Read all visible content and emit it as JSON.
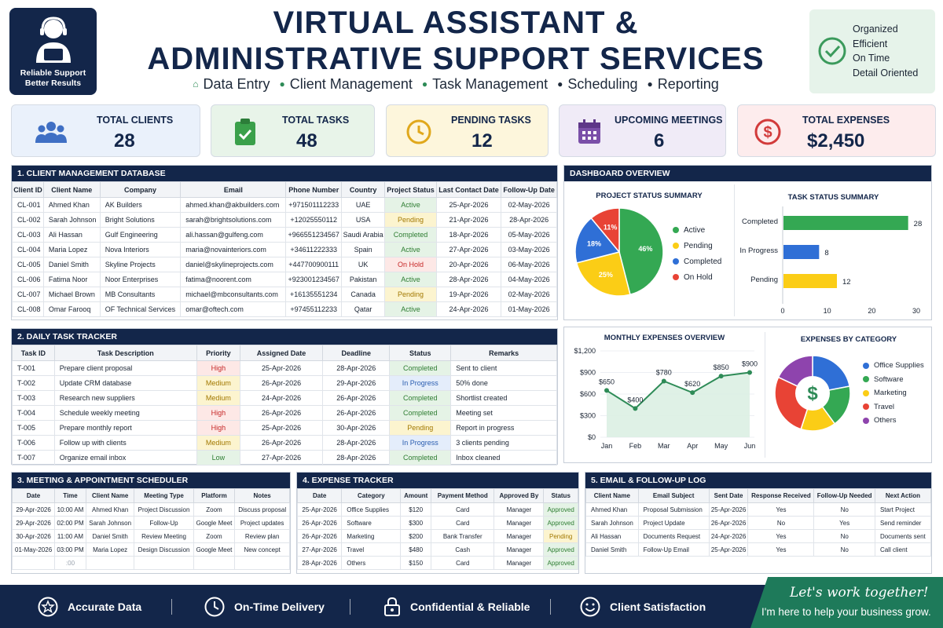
{
  "header": {
    "logo_line1": "Reliable Support",
    "logo_line2": "Better Results",
    "title_line1": "VIRTUAL ASSISTANT &",
    "title_line2": "ADMINISTRATIVE SUPPORT SERVICES",
    "services": [
      "Data Entry",
      "Client Management",
      "Task Management",
      "Scheduling",
      "Reporting"
    ],
    "badge": [
      "Organized",
      "Efficient",
      "On Time",
      "Detail Oriented"
    ]
  },
  "kpis": [
    {
      "label": "TOTAL CLIENTS",
      "value": "28",
      "icon": "users-icon",
      "bg": "#eaf1fb",
      "color": "#3f6fc4"
    },
    {
      "label": "TOTAL TASKS",
      "value": "48",
      "icon": "clipboard-check-icon",
      "bg": "#e8f4e9",
      "color": "#3aa04a"
    },
    {
      "label": "PENDING TASKS",
      "value": "12",
      "icon": "clock-icon",
      "bg": "#fdf6dc",
      "color": "#e0a81c"
    },
    {
      "label": "UPCOMING MEETINGS",
      "value": "6",
      "icon": "calendar-icon",
      "bg": "#f0ebf7",
      "color": "#7a4fa8"
    },
    {
      "label": "TOTAL EXPENSES",
      "value": "$2,450",
      "icon": "dollar-icon",
      "bg": "#fdeced",
      "color": "#d23b3b"
    }
  ],
  "clients": {
    "title": "1. CLIENT MANAGEMENT DATABASE",
    "columns": [
      "Client ID",
      "Client Name",
      "Company",
      "Email",
      "Phone Number",
      "Country",
      "Project Status",
      "Last Contact Date",
      "Follow-Up Date"
    ],
    "rows": [
      [
        "CL-001",
        "Ahmed Khan",
        "AK Builders",
        "ahmed.khan@akbuilders.com",
        "+971501112233",
        "UAE",
        "Active",
        "25-Apr-2026",
        "02-May-2026"
      ],
      [
        "CL-002",
        "Sarah Johnson",
        "Bright Solutions",
        "sarah@brightsolutions.com",
        "+12025550112",
        "USA",
        "Pending",
        "21-Apr-2026",
        "28-Apr-2026"
      ],
      [
        "CL-003",
        "Ali Hassan",
        "Gulf Engineering",
        "ali.hassan@gulfeng.com",
        "+966551234567",
        "Saudi Arabia",
        "Completed",
        "18-Apr-2026",
        "05-May-2026"
      ],
      [
        "CL-004",
        "Maria Lopez",
        "Nova Interiors",
        "maria@novainteriors.com",
        "+34611222333",
        "Spain",
        "Active",
        "27-Apr-2026",
        "03-May-2026"
      ],
      [
        "CL-005",
        "Daniel Smith",
        "Skyline Projects",
        "daniel@skylineprojects.com",
        "+447700900111",
        "UK",
        "On Hold",
        "20-Apr-2026",
        "06-May-2026"
      ],
      [
        "CL-006",
        "Fatima Noor",
        "Noor Enterprises",
        "fatima@noorent.com",
        "+923001234567",
        "Pakistan",
        "Active",
        "28-Apr-2026",
        "04-May-2026"
      ],
      [
        "CL-007",
        "Michael Brown",
        "MB Consultants",
        "michael@mbconsultants.com",
        "+16135551234",
        "Canada",
        "Pending",
        "19-Apr-2026",
        "02-May-2026"
      ],
      [
        "CL-008",
        "Omar Farooq",
        "OF Technical Services",
        "omar@oftech.com",
        "+97455112233",
        "Qatar",
        "Active",
        "24-Apr-2026",
        "01-May-2026"
      ]
    ]
  },
  "tasks": {
    "title": "2. DAILY TASK TRACKER",
    "columns": [
      "Task ID",
      "Task Description",
      "Priority",
      "Assigned Date",
      "Deadline",
      "Status",
      "Remarks"
    ],
    "rows": [
      [
        "T-001",
        "Prepare client proposal",
        "High",
        "25-Apr-2026",
        "28-Apr-2026",
        "Completed",
        "Sent to client"
      ],
      [
        "T-002",
        "Update CRM database",
        "Medium",
        "26-Apr-2026",
        "29-Apr-2026",
        "In Progress",
        "50% done"
      ],
      [
        "T-003",
        "Research new suppliers",
        "Medium",
        "24-Apr-2026",
        "26-Apr-2026",
        "Completed",
        "Shortlist created"
      ],
      [
        "T-004",
        "Schedule weekly meeting",
        "High",
        "26-Apr-2026",
        "26-Apr-2026",
        "Completed",
        "Meeting set"
      ],
      [
        "T-005",
        "Prepare monthly report",
        "High",
        "25-Apr-2026",
        "30-Apr-2026",
        "Pending",
        "Report in progress"
      ],
      [
        "T-006",
        "Follow up with clients",
        "Medium",
        "26-Apr-2026",
        "28-Apr-2026",
        "In Progress",
        "3 clients pending"
      ],
      [
        "T-007",
        "Organize email inbox",
        "Low",
        "27-Apr-2026",
        "28-Apr-2026",
        "Completed",
        "Inbox cleaned"
      ]
    ]
  },
  "meetings": {
    "title": "3. MEETING & APPOINTMENT SCHEDULER",
    "columns": [
      "Date",
      "Time",
      "Client Name",
      "Meeting Type",
      "Platform",
      "Notes"
    ],
    "rows": [
      [
        "29-Apr-2026",
        "10:00 AM",
        "Ahmed Khan",
        "Project Discussion",
        "Zoom",
        "Discuss proposal"
      ],
      [
        "29-Apr-2026",
        "02:00 PM",
        "Sarah Johnson",
        "Follow-Up",
        "Google Meet",
        "Project updates"
      ],
      [
        "30-Apr-2026",
        "11:00 AM",
        "Daniel Smith",
        "Review Meeting",
        "Zoom",
        "Review plan"
      ],
      [
        "01-May-2026",
        "03:00 PM",
        "Maria Lopez",
        "Design Discussion",
        "Google Meet",
        "New concept"
      ]
    ],
    "extra_time": ":00"
  },
  "expenses": {
    "title": "4. EXPENSE TRACKER",
    "columns": [
      "Date",
      "Category",
      "Amount",
      "Payment Method",
      "Approved By",
      "Status"
    ],
    "rows": [
      [
        "25-Apr-2026",
        "Office Supplies",
        "$120",
        "Card",
        "Manager",
        "Approved"
      ],
      [
        "26-Apr-2026",
        "Software",
        "$300",
        "Card",
        "Manager",
        "Approved"
      ],
      [
        "26-Apr-2026",
        "Marketing",
        "$200",
        "Bank Transfer",
        "Manager",
        "Pending"
      ],
      [
        "27-Apr-2026",
        "Travel",
        "$480",
        "Cash",
        "Manager",
        "Approved"
      ],
      [
        "28-Apr-2026",
        "Others",
        "$150",
        "Card",
        "Manager",
        "Approved"
      ]
    ]
  },
  "emails": {
    "title": "5. EMAIL & FOLLOW-UP LOG",
    "columns": [
      "Client Name",
      "Email Subject",
      "Sent Date",
      "Response Received",
      "Follow-Up Needed",
      "Next Action"
    ],
    "rows": [
      [
        "Ahmed Khan",
        "Proposal Submission",
        "25-Apr-2026",
        "Yes",
        "No",
        "Start Project"
      ],
      [
        "Sarah Johnson",
        "Project Update",
        "26-Apr-2026",
        "No",
        "Yes",
        "Send reminder"
      ],
      [
        "Ali Hassan",
        "Documents Request",
        "24-Apr-2026",
        "Yes",
        "No",
        "Documents sent"
      ],
      [
        "Daniel Smith",
        "Follow-Up Email",
        "25-Apr-2026",
        "Yes",
        "No",
        "Call client"
      ]
    ]
  },
  "dashboard": {
    "title": "DASHBOARD OVERVIEW"
  },
  "chart_data": [
    {
      "type": "pie",
      "title": "PROJECT STATUS SUMMARY",
      "categories": [
        "Active",
        "Pending",
        "Completed",
        "On Hold"
      ],
      "values": [
        46,
        25,
        18,
        11
      ],
      "labels": [
        "46%",
        "25%",
        "18%",
        "11%"
      ],
      "colors": [
        "#34a853",
        "#fbcd16",
        "#2f6fd6",
        "#e84335"
      ],
      "legend": "right"
    },
    {
      "type": "bar",
      "title": "TASK STATUS SUMMARY",
      "orientation": "horizontal",
      "categories": [
        "Completed",
        "In Progress",
        "Pending"
      ],
      "values": [
        28,
        8,
        12
      ],
      "colors": [
        "#34a853",
        "#2f6fd6",
        "#fbcd16"
      ],
      "xlim": [
        0,
        30
      ],
      "xticks": [
        0,
        10,
        20,
        30
      ]
    },
    {
      "type": "line",
      "title": "MONTHLY EXPENSES OVERVIEW",
      "categories": [
        "Jan",
        "Feb",
        "Mar",
        "Apr",
        "May",
        "Jun"
      ],
      "values": [
        650,
        400,
        780,
        620,
        850,
        900
      ],
      "labels": [
        "$650",
        "$400",
        "$780",
        "$620",
        "$850",
        "$900"
      ],
      "ylim": [
        0,
        1200
      ],
      "yticks": [
        "$0",
        "$300",
        "$600",
        "$900",
        "$1,200"
      ],
      "color": "#2e8b57"
    },
    {
      "type": "pie",
      "title": "EXPENSES BY CATEGORY",
      "categories": [
        "Office Supplies",
        "Software",
        "Marketing",
        "Travel",
        "Others"
      ],
      "values": [
        22,
        18,
        15,
        27,
        18
      ],
      "colors": [
        "#2f6fd6",
        "#34a853",
        "#fbcd16",
        "#e84335",
        "#8e44ad"
      ],
      "legend": "right",
      "donut": true,
      "center_icon": "dollar-icon"
    }
  ],
  "footer": {
    "items": [
      {
        "label": "Accurate Data",
        "icon": "star-icon"
      },
      {
        "label": "On-Time Delivery",
        "icon": "clock-icon"
      },
      {
        "label": "Confidential & Reliable",
        "icon": "lock-icon"
      },
      {
        "label": "Client Satisfaction",
        "icon": "smile-icon"
      }
    ],
    "cta_line1": "Let's work together!",
    "cta_line2": "I'm here to help your business grow."
  }
}
